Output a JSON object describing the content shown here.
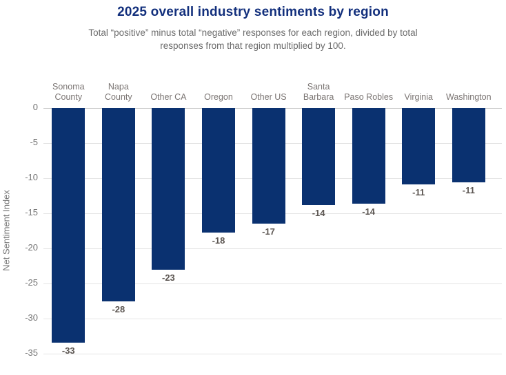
{
  "chart_data": {
    "type": "bar",
    "title": "2025 overall industry sentiments by region",
    "subtitle": "Total “positive” minus total “negative” responses for each region, divided by total\nresponses from that region multiplied by 100.",
    "ylabel": "Net Sentiment Index",
    "xlabel": "",
    "categories": [
      "Sonoma County",
      "Napa County",
      "Other CA",
      "Oregon",
      "Other US",
      "Santa Barbara",
      "Paso Robles",
      "Virginia",
      "Washington"
    ],
    "category_labels": [
      "Sonoma\nCounty",
      "Napa County",
      "Other CA",
      "Oregon",
      "Other US",
      "Santa\nBarbara",
      "Paso Robles",
      "Virginia",
      "Washington"
    ],
    "values": [
      -33,
      -28,
      -23,
      -18,
      -17,
      -14,
      -14,
      -11,
      -11
    ],
    "data_labels": [
      "-33",
      "-28",
      "-23",
      "-18",
      "-17",
      "-14",
      "-14",
      "-11",
      "-11"
    ],
    "bar_rendered_values": [
      -33.4,
      -27.5,
      -23.0,
      -17.7,
      -16.5,
      -13.8,
      -13.6,
      -10.9,
      -10.6
    ],
    "ylim": [
      -35,
      0
    ],
    "ytick_labels": [
      "0",
      "-5",
      "-10",
      "-15",
      "-20",
      "-25",
      "-30",
      "-35"
    ],
    "grid": "horizontal",
    "legend": "none"
  },
  "colors": {
    "bar": "#0a3170",
    "title": "#122f7c",
    "subtitle": "#6b6b6b",
    "axis_text": "#757575",
    "category_text": "#7a7472",
    "value_label_text": "#5c5652",
    "gridline": "#e4e4e4",
    "zero_line": "#c9c9c9",
    "background": "#ffffff"
  }
}
